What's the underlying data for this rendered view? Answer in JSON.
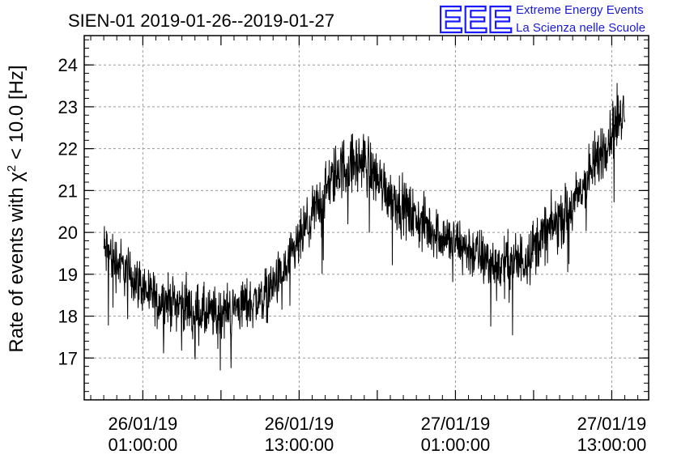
{
  "header": {
    "title": "SIEN-01 2019-01-26--2019-01-27",
    "logo_mark": "EEE",
    "logo_line1": "Extreme Energy Events",
    "logo_line2": "La Scienza nelle Scuole",
    "logo_color": "#1a1aff"
  },
  "chart_data": {
    "type": "line",
    "title": "SIEN-01 2019-01-26--2019-01-27",
    "xlabel": "",
    "ylabel": "Rate of events with χ² < 10.0 [Hz]",
    "ylabel_parts": {
      "pre": "Rate of events with ",
      "chi": "χ",
      "sup": "2",
      "post": " < 10.0 [Hz]"
    },
    "xlim": [
      "2019-01-25T20:30",
      "2019-01-27T15:50"
    ],
    "ylim": [
      16.0,
      24.7
    ],
    "grid": true,
    "color": "#000000",
    "y_ticks": [
      17,
      18,
      19,
      20,
      21,
      22,
      23,
      24
    ],
    "x_ticks": [
      {
        "time": "2019-01-26T01:00",
        "date": "26/01/19",
        "clock": "01:00:00"
      },
      {
        "time": "2019-01-26T13:00",
        "date": "26/01/19",
        "clock": "13:00:00"
      },
      {
        "time": "2019-01-27T01:00",
        "date": "27/01/19",
        "clock": "01:00:00"
      },
      {
        "time": "2019-01-27T13:00",
        "date": "27/01/19",
        "clock": "13:00:00"
      }
    ],
    "series": [
      {
        "x": [
          "2019-01-25T22:00",
          "2019-01-26T00:00",
          "2019-01-26T02:00",
          "2019-01-26T04:00",
          "2019-01-26T06:00",
          "2019-01-26T08:00",
          "2019-01-26T10:00",
          "2019-01-26T12:00",
          "2019-01-26T14:00",
          "2019-01-26T16:00",
          "2019-01-26T18:00",
          "2019-01-26T20:00",
          "2019-01-26T22:00",
          "2019-01-27T00:00",
          "2019-01-27T02:00",
          "2019-01-27T04:00",
          "2019-01-27T06:00",
          "2019-01-27T08:00",
          "2019-01-27T10:00",
          "2019-01-27T12:00",
          "2019-01-27T14:00"
        ],
        "values": [
          19.6,
          19.0,
          18.4,
          18.3,
          18.0,
          18.2,
          18.4,
          19.1,
          20.4,
          21.5,
          21.7,
          20.9,
          20.3,
          19.9,
          19.6,
          19.2,
          19.3,
          20.0,
          20.6,
          21.8,
          23.0
        ],
        "spread": [
          1.2,
          1.0,
          1.0,
          1.0,
          1.1,
          1.0,
          1.0,
          1.0,
          1.1,
          1.2,
          1.2,
          1.1,
          1.1,
          1.0,
          1.1,
          1.1,
          1.2,
          1.1,
          1.1,
          1.2,
          1.2
        ]
      }
    ]
  }
}
